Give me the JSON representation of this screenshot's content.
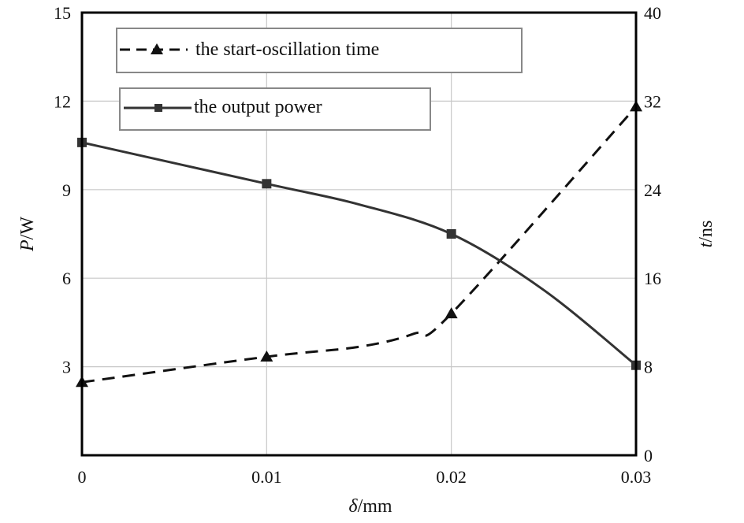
{
  "chart_data": {
    "type": "line",
    "x": [
      0,
      0.01,
      0.02,
      0.03
    ],
    "x_ticks": [
      "0",
      "0.01",
      "0.02",
      "0.03"
    ],
    "xlim": [
      0,
      0.03
    ],
    "xlabel": {
      "symbol": "δ",
      "unit": "/mm"
    },
    "y_left": {
      "label": {
        "symbol": "P",
        "unit": "/W"
      },
      "lim": [
        0,
        15
      ],
      "ticks": [
        "3",
        "6",
        "9",
        "12",
        "15"
      ],
      "tick_values": [
        3,
        6,
        9,
        12,
        15
      ]
    },
    "y_right": {
      "label": {
        "symbol": "t",
        "unit": "/ns"
      },
      "lim": [
        0,
        40
      ],
      "ticks": [
        "0",
        "8",
        "16",
        "24",
        "32",
        "40"
      ],
      "tick_values": [
        0,
        8,
        16,
        24,
        32,
        40
      ]
    },
    "grid": true,
    "series": [
      {
        "name": "the start-oscillation time",
        "axis": "right",
        "style": "dashed",
        "marker": "triangle",
        "color": "#111111",
        "x": [
          0,
          0.01,
          0.015,
          0.018,
          0.02,
          0.03
        ],
        "values": [
          6.6,
          8.9,
          9.8,
          11.0,
          12.8,
          31.5
        ],
        "marker_indices": [
          0,
          1,
          4,
          5
        ]
      },
      {
        "name": "the output power",
        "axis": "left",
        "style": "solid",
        "marker": "square",
        "color": "#333333",
        "x": [
          0,
          0.01,
          0.015,
          0.02,
          0.025,
          0.03
        ],
        "values": [
          10.6,
          9.2,
          8.5,
          7.5,
          5.6,
          3.05
        ],
        "marker_indices": [
          0,
          1,
          3,
          5
        ]
      }
    ],
    "legend_placement": "top-left"
  }
}
